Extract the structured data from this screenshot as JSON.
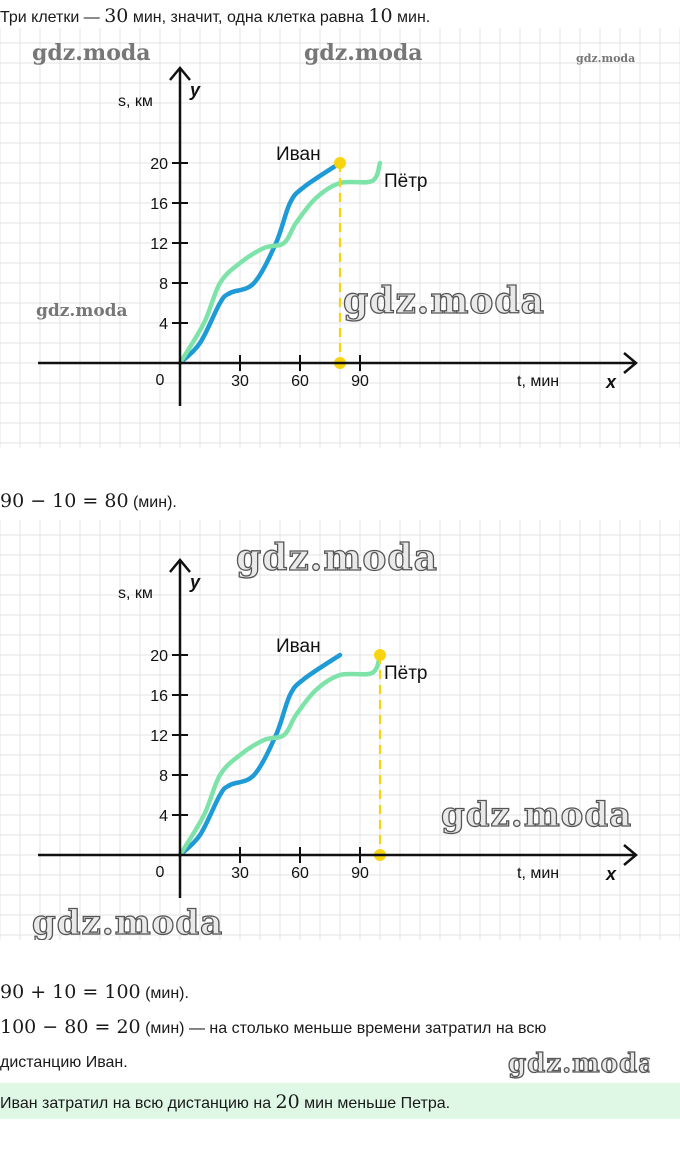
{
  "intro": {
    "pre": "Три клетки — ",
    "num": "30",
    "post": " мин, значит, одна клетка равна ",
    "num2": "10",
    "post2": " мин."
  },
  "watermark": "gdz.moda",
  "calc1": {
    "expr": "90 − 10 = 80",
    "unit": " (мин)."
  },
  "calc2": {
    "expr": "90 + 10 = 100",
    "unit": " (мин)."
  },
  "calc3": {
    "expr": "100 − 80 = 20",
    "unit": " (мин) — на столько меньше времени затратил на всю",
    "cont": "дистанцию Иван."
  },
  "answer": {
    "pre": "Иван затратил на всю дистанцию на ",
    "num": "20",
    "post": " мин меньше Петра."
  },
  "chart_data": [
    {
      "type": "line",
      "xlabel": "t, мин",
      "ylabel": "s, км",
      "x_axis_letter": "x",
      "y_axis_letter": "y",
      "origin_label": "0",
      "x_ticks": [
        "30",
        "60",
        "90"
      ],
      "y_ticks": [
        "4",
        "8",
        "12",
        "16",
        "20"
      ],
      "grid": true,
      "series": [
        {
          "name": "Иван",
          "color": "#1e9ad6",
          "points": [
            [
              0,
              0
            ],
            [
              10,
              2
            ],
            [
              20,
              6
            ],
            [
              25,
              7
            ],
            [
              37,
              8
            ],
            [
              48,
              12
            ],
            [
              55,
              16
            ],
            [
              62,
              17.6
            ],
            [
              80,
              20
            ]
          ]
        },
        {
          "name": "Пётр",
          "color": "#7de3a8",
          "points": [
            [
              0,
              0
            ],
            [
              12,
              4
            ],
            [
              20,
              8
            ],
            [
              30,
              10
            ],
            [
              42,
              11.5
            ],
            [
              52,
              12
            ],
            [
              58,
              14
            ],
            [
              68,
              16.5
            ],
            [
              80,
              18
            ],
            [
              96,
              18.2
            ],
            [
              100,
              20
            ]
          ]
        }
      ],
      "marker": {
        "x": 80,
        "y": 20,
        "color": "#f7d40f"
      }
    },
    {
      "type": "line",
      "xlabel": "t, мин",
      "ylabel": "s, км",
      "x_axis_letter": "x",
      "y_axis_letter": "y",
      "origin_label": "0",
      "x_ticks": [
        "30",
        "60",
        "90"
      ],
      "y_ticks": [
        "4",
        "8",
        "12",
        "16",
        "20"
      ],
      "grid": true,
      "series": [
        {
          "name": "Иван",
          "color": "#1e9ad6",
          "points": [
            [
              0,
              0
            ],
            [
              10,
              2
            ],
            [
              20,
              6
            ],
            [
              25,
              7
            ],
            [
              37,
              8
            ],
            [
              48,
              12
            ],
            [
              55,
              16
            ],
            [
              62,
              17.6
            ],
            [
              80,
              20
            ]
          ]
        },
        {
          "name": "Пётр",
          "color": "#7de3a8",
          "points": [
            [
              0,
              0
            ],
            [
              12,
              4
            ],
            [
              20,
              8
            ],
            [
              30,
              10
            ],
            [
              42,
              11.5
            ],
            [
              52,
              12
            ],
            [
              58,
              14
            ],
            [
              68,
              16.5
            ],
            [
              80,
              18
            ],
            [
              96,
              18.2
            ],
            [
              100,
              20
            ]
          ]
        }
      ],
      "marker": {
        "x": 100,
        "y": 20,
        "color": "#f7d40f"
      }
    }
  ]
}
